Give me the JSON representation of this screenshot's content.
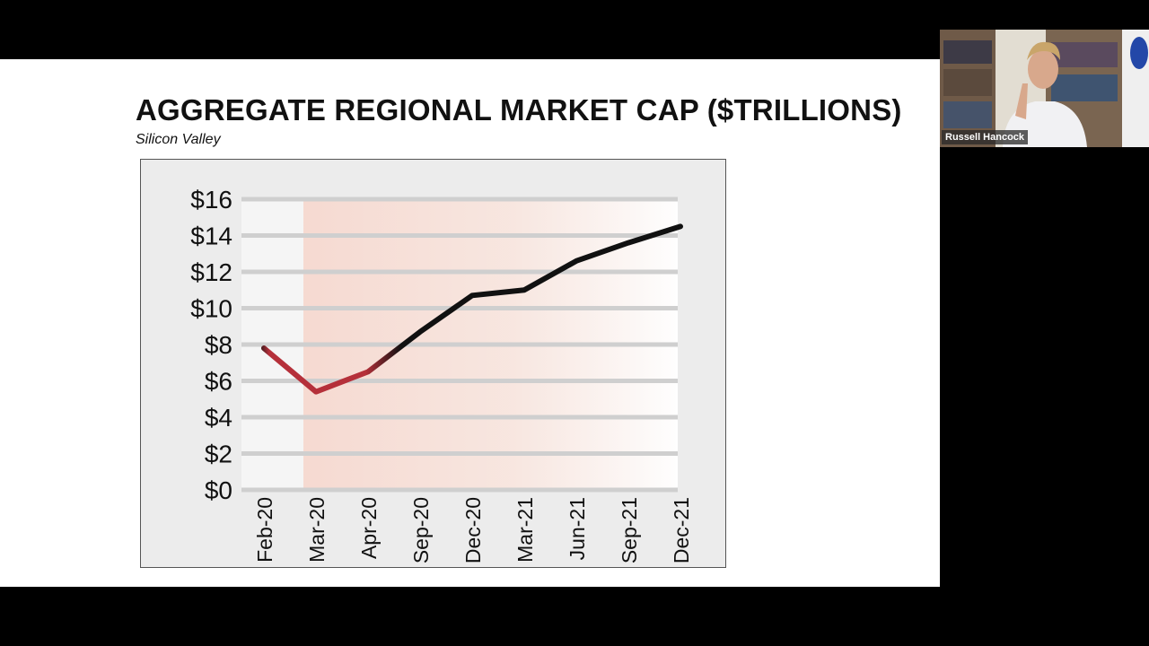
{
  "slide": {
    "title": "AGGREGATE REGIONAL MARKET CAP ($TRILLIONS)",
    "subtitle": "Silicon Valley"
  },
  "participant": {
    "name": "Russell Hancock"
  },
  "colors": {
    "line_main": "#111111",
    "line_dip": "#b5303a",
    "shade": "#f6d8cf",
    "grid": "#cfcfcf",
    "frame_bg": "#ececec"
  },
  "chart_data": {
    "type": "line",
    "title": "AGGREGATE REGIONAL MARKET CAP ($TRILLIONS)",
    "subtitle": "Silicon Valley",
    "categories": [
      "Feb-20",
      "Mar-20",
      "Apr-20",
      "Sep-20",
      "Dec-20",
      "Mar-21",
      "Jun-21",
      "Sep-21",
      "Dec-21"
    ],
    "values": [
      7.8,
      5.4,
      6.5,
      8.7,
      10.7,
      11.0,
      12.6,
      13.6,
      14.5
    ],
    "y_ticks": [
      "$0",
      "$2",
      "$4",
      "$6",
      "$8",
      "$10",
      "$12",
      "$14",
      "$16"
    ],
    "ylim": [
      0,
      16
    ],
    "xlabel": "",
    "ylabel": "",
    "grid": true,
    "legend": "none"
  }
}
